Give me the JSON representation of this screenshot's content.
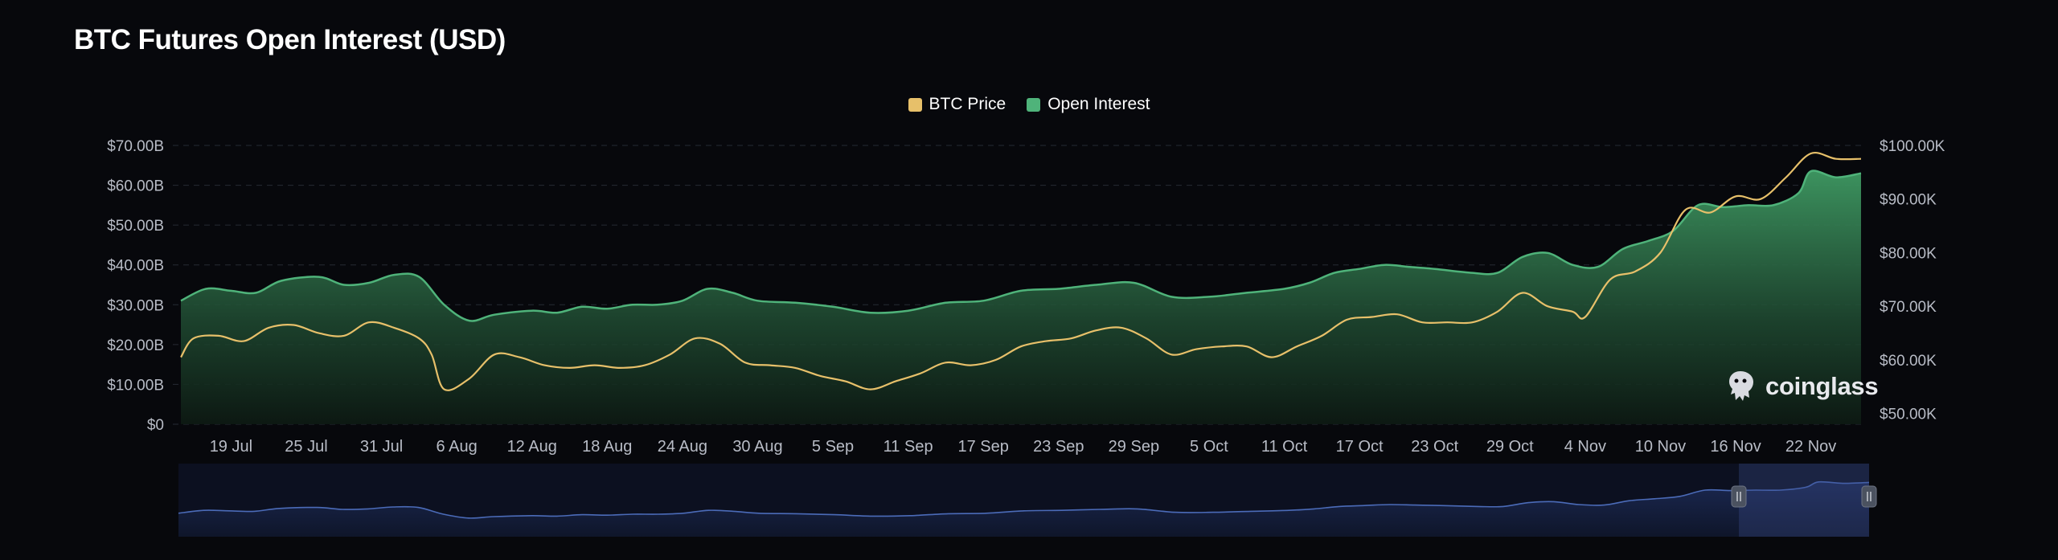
{
  "title": "BTC Futures Open Interest (USD)",
  "brand": "coinglass",
  "colors": {
    "background": "#07080c",
    "btc_price": "#e7c06a",
    "open_interest": "#4fb37a",
    "navigator_line": "#4b6bb8"
  },
  "chart_data": {
    "type": "area",
    "title": "BTC Futures Open Interest (USD)",
    "x_tick_labels": [
      "19 Jul",
      "25 Jul",
      "31 Jul",
      "6 Aug",
      "12 Aug",
      "18 Aug",
      "24 Aug",
      "30 Aug",
      "5 Sep",
      "11 Sep",
      "17 Sep",
      "23 Sep",
      "29 Sep",
      "5 Oct",
      "11 Oct",
      "17 Oct",
      "23 Oct",
      "29 Oct",
      "4 Nov",
      "10 Nov",
      "16 Nov",
      "22 Nov"
    ],
    "left_axis": {
      "ticks": [
        "$0",
        "$10.00B",
        "$20.00B",
        "$30.00B",
        "$40.00B",
        "$50.00B",
        "$60.00B",
        "$70.00B"
      ],
      "ylim": [
        0,
        70
      ]
    },
    "right_axis": {
      "ticks": [
        "$50.00K",
        "$60.00K",
        "$70.00K",
        "$80.00K",
        "$90.00K",
        "$100.00K"
      ],
      "ylim": [
        48,
        100
      ]
    },
    "x_range": [
      "2024-07-15",
      "2024-11-26"
    ],
    "legend_position": "top-center",
    "grid": true,
    "series": [
      {
        "name": "Open Interest",
        "axis": "left",
        "unit": "USD billions",
        "type": "area",
        "points": [
          [
            "2024-07-15",
            31
          ],
          [
            "2024-07-17",
            34
          ],
          [
            "2024-07-19",
            33.5
          ],
          [
            "2024-07-21",
            33
          ],
          [
            "2024-07-23",
            36
          ],
          [
            "2024-07-26",
            37
          ],
          [
            "2024-07-28",
            35
          ],
          [
            "2024-07-30",
            35.5
          ],
          [
            "2024-08-01",
            37.5
          ],
          [
            "2024-08-03",
            37
          ],
          [
            "2024-08-05",
            30
          ],
          [
            "2024-08-07",
            26
          ],
          [
            "2024-08-09",
            27.5
          ],
          [
            "2024-08-12",
            28.5
          ],
          [
            "2024-08-14",
            28
          ],
          [
            "2024-08-16",
            29.5
          ],
          [
            "2024-08-18",
            29
          ],
          [
            "2024-08-20",
            30
          ],
          [
            "2024-08-22",
            30
          ],
          [
            "2024-08-24",
            31
          ],
          [
            "2024-08-26",
            34
          ],
          [
            "2024-08-28",
            33
          ],
          [
            "2024-08-30",
            31
          ],
          [
            "2024-09-02",
            30.5
          ],
          [
            "2024-09-05",
            29.5
          ],
          [
            "2024-09-08",
            28
          ],
          [
            "2024-09-11",
            28.5
          ],
          [
            "2024-09-14",
            30.5
          ],
          [
            "2024-09-17",
            31
          ],
          [
            "2024-09-20",
            33.5
          ],
          [
            "2024-09-23",
            34
          ],
          [
            "2024-09-26",
            35
          ],
          [
            "2024-09-29",
            35.5
          ],
          [
            "2024-10-02",
            32
          ],
          [
            "2024-10-05",
            32
          ],
          [
            "2024-10-08",
            33
          ],
          [
            "2024-10-11",
            34
          ],
          [
            "2024-10-13",
            35.5
          ],
          [
            "2024-10-15",
            38
          ],
          [
            "2024-10-17",
            39
          ],
          [
            "2024-10-19",
            40
          ],
          [
            "2024-10-21",
            39.5
          ],
          [
            "2024-10-23",
            39
          ],
          [
            "2024-10-26",
            38
          ],
          [
            "2024-10-28",
            38
          ],
          [
            "2024-10-30",
            42
          ],
          [
            "2024-11-01",
            43
          ],
          [
            "2024-11-03",
            40
          ],
          [
            "2024-11-05",
            39.5
          ],
          [
            "2024-11-07",
            44
          ],
          [
            "2024-11-09",
            46
          ],
          [
            "2024-11-11",
            48.5
          ],
          [
            "2024-11-13",
            55
          ],
          [
            "2024-11-15",
            54.5
          ],
          [
            "2024-11-17",
            55
          ],
          [
            "2024-11-19",
            55
          ],
          [
            "2024-11-21",
            58
          ],
          [
            "2024-11-22",
            63.5
          ],
          [
            "2024-11-24",
            62
          ],
          [
            "2024-11-26",
            63
          ]
        ]
      },
      {
        "name": "BTC Price",
        "axis": "right",
        "unit": "USD thousands",
        "type": "line",
        "points": [
          [
            "2024-07-15",
            60.5
          ],
          [
            "2024-07-16",
            64
          ],
          [
            "2024-07-18",
            64.5
          ],
          [
            "2024-07-20",
            63.5
          ],
          [
            "2024-07-22",
            66
          ],
          [
            "2024-07-24",
            66.5
          ],
          [
            "2024-07-26",
            65
          ],
          [
            "2024-07-28",
            64.5
          ],
          [
            "2024-07-30",
            67
          ],
          [
            "2024-08-01",
            66
          ],
          [
            "2024-08-03",
            64
          ],
          [
            "2024-08-04",
            61
          ],
          [
            "2024-08-05",
            54.5
          ],
          [
            "2024-08-07",
            56.5
          ],
          [
            "2024-08-09",
            61
          ],
          [
            "2024-08-11",
            60.5
          ],
          [
            "2024-08-13",
            59
          ],
          [
            "2024-08-15",
            58.5
          ],
          [
            "2024-08-17",
            59
          ],
          [
            "2024-08-19",
            58.5
          ],
          [
            "2024-08-21",
            59
          ],
          [
            "2024-08-23",
            61
          ],
          [
            "2024-08-25",
            64
          ],
          [
            "2024-08-27",
            63
          ],
          [
            "2024-08-29",
            59.5
          ],
          [
            "2024-08-31",
            59
          ],
          [
            "2024-09-02",
            58.5
          ],
          [
            "2024-09-04",
            57
          ],
          [
            "2024-09-06",
            56
          ],
          [
            "2024-09-08",
            54.5
          ],
          [
            "2024-09-10",
            56
          ],
          [
            "2024-09-12",
            57.5
          ],
          [
            "2024-09-14",
            59.5
          ],
          [
            "2024-09-16",
            59
          ],
          [
            "2024-09-18",
            60
          ],
          [
            "2024-09-20",
            62.5
          ],
          [
            "2024-09-22",
            63.5
          ],
          [
            "2024-09-24",
            64
          ],
          [
            "2024-09-26",
            65.5
          ],
          [
            "2024-09-28",
            66
          ],
          [
            "2024-09-30",
            64
          ],
          [
            "2024-10-02",
            61
          ],
          [
            "2024-10-04",
            62
          ],
          [
            "2024-10-06",
            62.5
          ],
          [
            "2024-10-08",
            62.5
          ],
          [
            "2024-10-10",
            60.5
          ],
          [
            "2024-10-12",
            62.5
          ],
          [
            "2024-10-14",
            64.5
          ],
          [
            "2024-10-16",
            67.5
          ],
          [
            "2024-10-18",
            68
          ],
          [
            "2024-10-20",
            68.5
          ],
          [
            "2024-10-22",
            67
          ],
          [
            "2024-10-24",
            67
          ],
          [
            "2024-10-26",
            67
          ],
          [
            "2024-10-28",
            69
          ],
          [
            "2024-10-30",
            72.5
          ],
          [
            "2024-11-01",
            70
          ],
          [
            "2024-11-03",
            69
          ],
          [
            "2024-11-04",
            68
          ],
          [
            "2024-11-06",
            75
          ],
          [
            "2024-11-08",
            76.5
          ],
          [
            "2024-11-10",
            80
          ],
          [
            "2024-11-12",
            88
          ],
          [
            "2024-11-14",
            87.5
          ],
          [
            "2024-11-16",
            90.5
          ],
          [
            "2024-11-18",
            90
          ],
          [
            "2024-11-20",
            94
          ],
          [
            "2024-11-22",
            98.5
          ],
          [
            "2024-11-24",
            97.5
          ],
          [
            "2024-11-26",
            97.5
          ]
        ]
      }
    ]
  }
}
